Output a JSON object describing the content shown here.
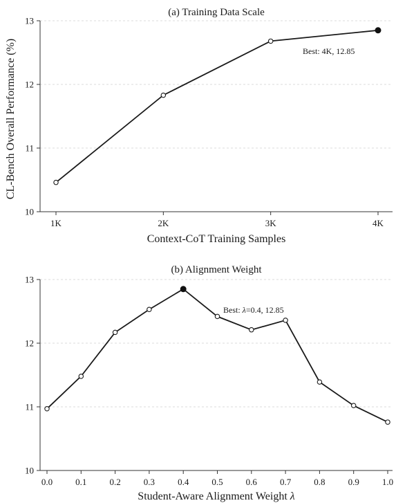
{
  "figure": {
    "ylabel": "CL-Bench Overall Performance (%)"
  },
  "chart_data": [
    {
      "type": "line",
      "title": "(a) Training Data Scale",
      "xlabel": "Context-CoT Training Samples",
      "ylabel": "CL-Bench Overall Performance (%)",
      "categories": [
        "1K",
        "2K",
        "3K",
        "4K"
      ],
      "values": [
        10.46,
        11.83,
        12.68,
        12.85
      ],
      "ylim": [
        10,
        13
      ],
      "yticks": [
        10,
        11,
        12,
        13
      ],
      "grid": true,
      "best_index": 3,
      "annotation": "Best: 4K, 12.85"
    },
    {
      "type": "line",
      "title": "(b) Alignment Weight",
      "xlabel_prefix": "Student-Aware Alignment Weight ",
      "xlabel_symbol": "λ",
      "ylabel": "CL-Bench Overall Performance (%)",
      "categories": [
        "0.0",
        "0.1",
        "0.2",
        "0.3",
        "0.4",
        "0.5",
        "0.6",
        "0.7",
        "0.8",
        "0.9",
        "1.0"
      ],
      "values": [
        10.97,
        11.48,
        12.17,
        12.53,
        12.85,
        12.42,
        12.21,
        12.36,
        11.39,
        11.02,
        10.76
      ],
      "ylim": [
        10,
        13
      ],
      "yticks": [
        10,
        11,
        12,
        13
      ],
      "grid": true,
      "best_index": 4,
      "annotation_prefix": "Best: ",
      "annotation_symbol": "λ",
      "annotation_suffix": "=0.4, 12.85"
    }
  ]
}
